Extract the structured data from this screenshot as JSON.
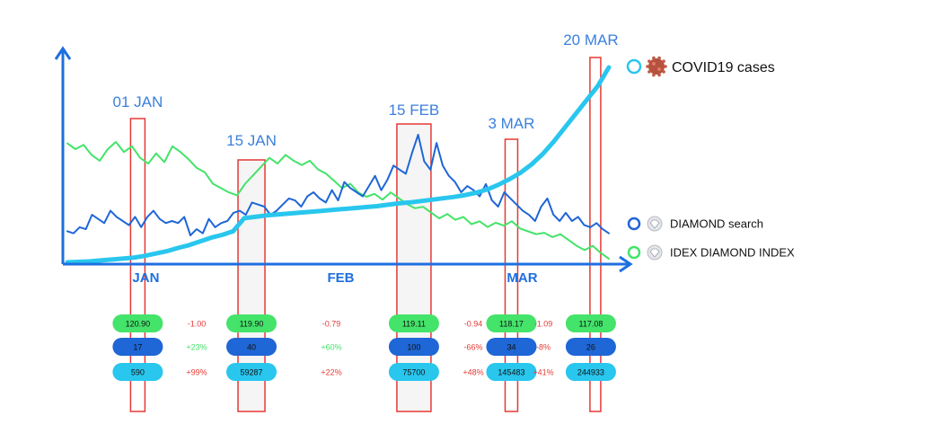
{
  "chart_data": {
    "type": "line",
    "months": [
      "JAN",
      "FEB",
      "MAR"
    ],
    "series": [
      {
        "name": "COVID19 cases",
        "color": "#29c6ee",
        "icon": "virus-icon",
        "values": [
          5,
          6,
          7,
          9,
          11,
          13,
          15,
          19,
          24,
          29,
          36,
          42,
          50,
          58,
          64,
          72,
          100,
          103,
          106,
          108,
          110,
          112,
          114,
          116,
          118,
          120,
          122,
          124,
          126,
          129,
          132,
          134,
          137,
          140,
          143,
          146,
          150,
          155,
          162,
          172,
          184,
          198,
          216,
          238,
          265,
          295,
          325,
          355,
          385,
          425
        ]
      },
      {
        "name": "DIAMOND search",
        "color": "#1f66d6",
        "icon": "diamond-icon",
        "values": [
          32,
          30,
          36,
          34,
          48,
          44,
          40,
          52,
          46,
          42,
          38,
          46,
          36,
          46,
          52,
          44,
          40,
          42,
          40,
          46,
          28,
          34,
          30,
          44,
          36,
          40,
          42,
          50,
          52,
          48,
          60,
          58,
          56,
          48,
          52,
          58,
          64,
          62,
          56,
          66,
          70,
          64,
          60,
          72,
          62,
          80,
          74,
          70,
          66,
          76,
          86,
          72,
          82,
          96,
          92,
          88,
          108,
          126,
          100,
          92,
          118,
          96,
          86,
          80,
          70,
          76,
          72,
          66,
          78,
          62,
          56,
          70,
          64,
          58,
          52,
          48,
          42,
          56,
          64,
          48,
          42,
          50,
          42,
          46,
          38,
          36,
          40,
          34,
          30
        ]
      },
      {
        "name": "IDEX DIAMOND INDEX",
        "color": "#44e36a",
        "icon": "diamond-icon",
        "values": [
          123.0,
          122.6,
          122.9,
          122.2,
          121.8,
          122.6,
          123.1,
          122.4,
          122.8,
          122.0,
          121.6,
          122.3,
          121.7,
          122.8,
          122.4,
          121.9,
          121.3,
          121.0,
          120.2,
          119.9,
          119.6,
          119.4,
          120.2,
          120.8,
          121.4,
          122.0,
          121.6,
          122.2,
          121.8,
          121.5,
          121.8,
          121.2,
          120.9,
          120.4,
          119.9,
          120.2,
          119.6,
          119.3,
          119.5,
          119.1,
          119.6,
          119.2,
          118.8,
          118.5,
          118.6,
          118.2,
          117.8,
          118.1,
          117.7,
          117.9,
          117.4,
          117.6,
          117.2,
          117.5,
          117.3,
          117.6,
          117.1,
          116.9,
          116.7,
          116.8,
          116.5,
          116.7,
          116.3,
          115.9,
          115.6,
          115.9,
          115.4,
          115.0
        ],
        "ylim_note": "right panel of the axis, dips at end"
      }
    ],
    "markers": [
      {
        "date": "01 JAN",
        "t": 0.13,
        "index": "120.90",
        "index_change": "-1.00",
        "search": "17",
        "search_change": "+23%",
        "cases": "590",
        "cases_change": "+99%"
      },
      {
        "date": "15 JAN",
        "t": 0.34,
        "index": "119.90",
        "index_change": "-0.79",
        "search": "40",
        "search_change": "+60%",
        "cases": "59287",
        "cases_change": "+22%"
      },
      {
        "date": "15 FEB",
        "t": 0.64,
        "index": "119.11",
        "index_change": "-0.94",
        "search": "100",
        "search_change": "-66%",
        "cases": "75700",
        "cases_change": "+48%"
      },
      {
        "date": "3 MAR",
        "t": 0.82,
        "index": "118.17",
        "index_change": "-1.09",
        "search": "34",
        "search_change": "-8%",
        "cases": "145483",
        "cases_change": "+41%"
      },
      {
        "date": "20 MAR",
        "t": 0.975,
        "index": "117.08",
        "search": "26",
        "cases": "244933"
      }
    ],
    "colors": {
      "axis": "#1e6fe0",
      "marker_box": "#e53935",
      "date_label": "#3b7fde",
      "index_pill": "#44e36a",
      "search_pill": "#1f66d6",
      "cases_pill": "#29c6ee",
      "change_negative": "#e53935",
      "change_positive": "#44e36a"
    }
  }
}
